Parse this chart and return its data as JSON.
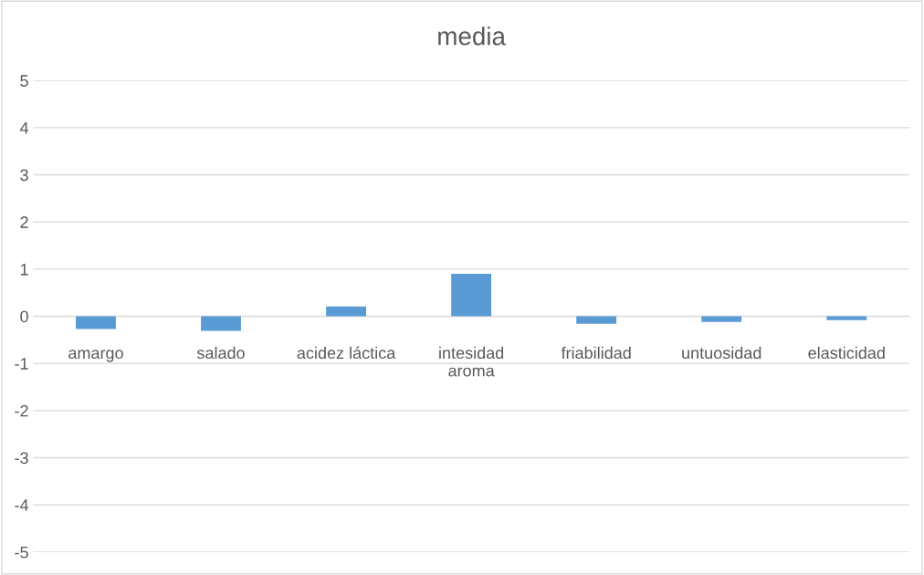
{
  "chart_data": {
    "type": "bar",
    "title": "media",
    "categories": [
      "amargo",
      "salado",
      "acidez láctica",
      "intesidad aroma",
      "friabilidad",
      "untuosidad",
      "elasticidad"
    ],
    "values": [
      -0.27,
      -0.31,
      0.21,
      0.9,
      -0.16,
      -0.12,
      -0.08
    ],
    "color": "#5b9bd5",
    "ylim": [
      -5,
      5
    ],
    "yticks": [
      -5,
      -4,
      -3,
      -2,
      -1,
      0,
      1,
      2,
      3,
      4,
      5
    ],
    "grid": "y"
  }
}
